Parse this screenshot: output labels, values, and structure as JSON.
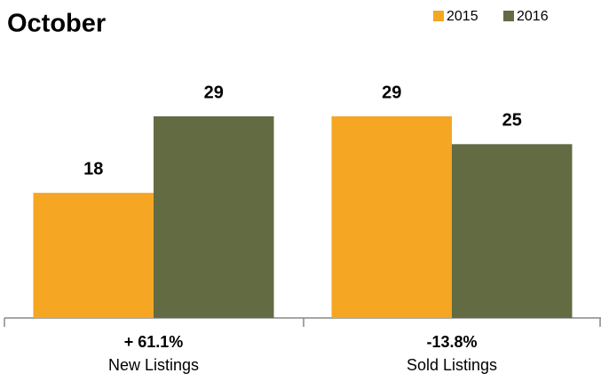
{
  "chart_data": {
    "type": "bar",
    "title": "October",
    "categories": [
      "New Listings",
      "Sold Listings"
    ],
    "annotations": [
      "+ 61.1%",
      "-13.8%"
    ],
    "series": [
      {
        "name": "2015",
        "color": "#f5a623",
        "values": [
          18,
          29
        ]
      },
      {
        "name": "2016",
        "color": "#636b43",
        "values": [
          29,
          25
        ]
      }
    ],
    "legend": "top-right"
  }
}
